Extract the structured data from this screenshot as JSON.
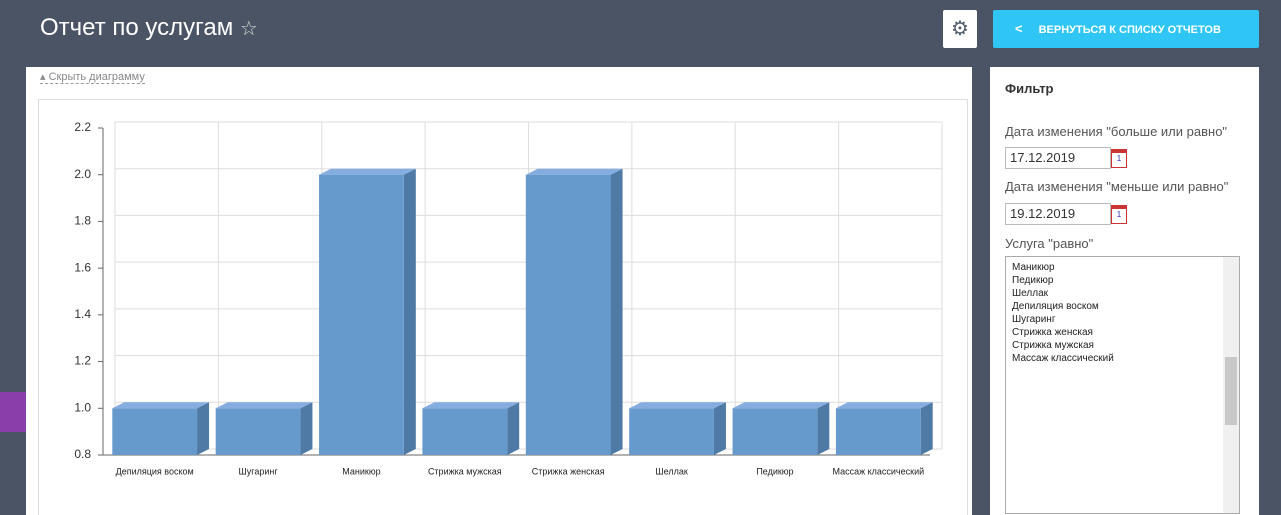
{
  "header": {
    "title": "Отчет по услугам",
    "back_button": "ВЕРНУТЬСЯ К СПИСКУ ОТЧЕТОВ"
  },
  "toggle_chart": "Скрыть диаграмму",
  "chart_data": {
    "type": "bar",
    "categories": [
      "Депиляция воском",
      "Шугаринг",
      "Маникюр",
      "Стрижка мужская",
      "Стрижка женская",
      "Шеллак",
      "Педикюр",
      "Массаж классический"
    ],
    "values": [
      1,
      1,
      2,
      1,
      2,
      1,
      1,
      1
    ],
    "color": "#6699cc",
    "ylim": [
      0.8,
      2.2
    ],
    "yticks": [
      0.8,
      {
        "value": 1,
        "label": "1.0"
      },
      1.2,
      1.4,
      1.6,
      1.8,
      {
        "value": 2,
        "label": "2.0"
      },
      2.2
    ],
    "grid": true
  },
  "filter": {
    "title": "Фильтр",
    "date_from_label": "Дата изменения \"больше или равно\"",
    "date_from": "17.12.2019",
    "date_to_label": "Дата изменения \"меньше или равно\"",
    "date_to": "19.12.2019",
    "service_label": "Услуга \"равно\"",
    "options": [
      "Маникюр",
      "Педикюр",
      "Шеллак",
      "Депиляция воском",
      "Шугаринг",
      "Стрижка женская",
      "Стрижка мужская",
      "Массаж классический"
    ]
  }
}
